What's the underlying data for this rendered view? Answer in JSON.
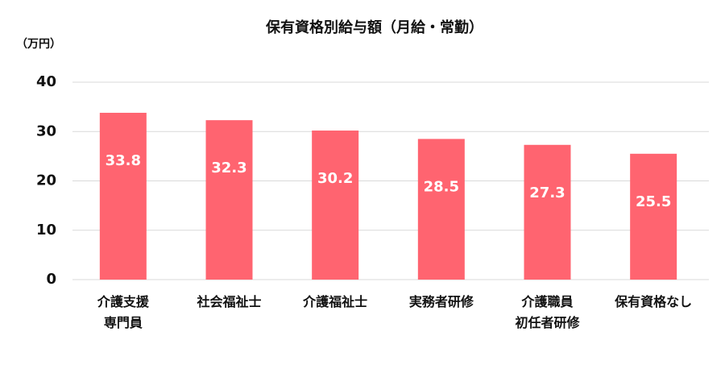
{
  "chart_data": {
    "type": "bar",
    "title": "保有資格別給与額（月給・常勤）",
    "y_label": "（万円）",
    "categories": [
      "介護支援\n専門員",
      "社会福祉士",
      "介護福祉士",
      "実務者研修",
      "介護職員\n初任者研修",
      "保有資格なし"
    ],
    "values": [
      33.8,
      32.3,
      30.2,
      28.5,
      27.3,
      25.5
    ],
    "color": "#ff6470",
    "ylim": [
      0,
      40
    ],
    "yticks": [
      0,
      10,
      20,
      30,
      40
    ],
    "grid": true
  }
}
